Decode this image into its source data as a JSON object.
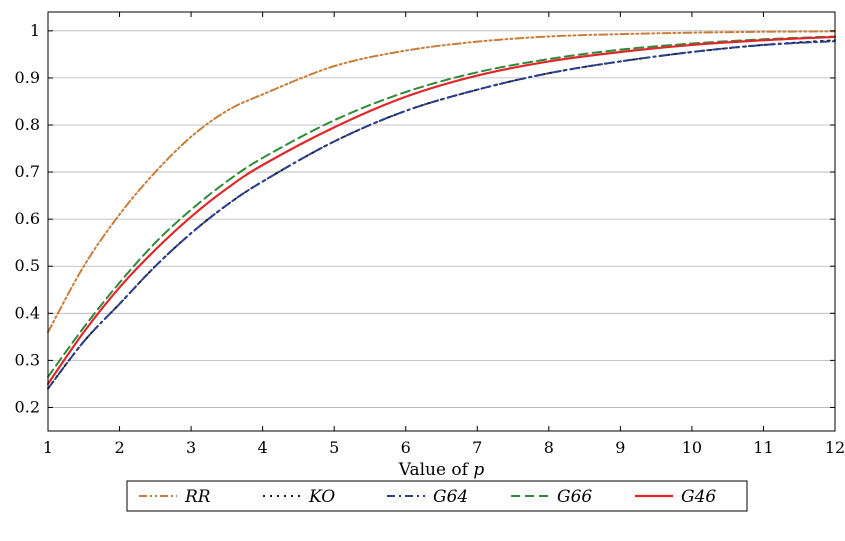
{
  "chart_data": {
    "type": "line",
    "xlabel": "Value of p",
    "xlabel_parts": {
      "prefix": "Value of ",
      "variable": "p"
    },
    "ylabel": "",
    "xlim": [
      1,
      12
    ],
    "ylim": [
      0.15,
      1.04
    ],
    "xticks": [
      1,
      2,
      3,
      4,
      5,
      6,
      7,
      8,
      9,
      10,
      11,
      12
    ],
    "yticks": [
      0.2,
      0.3,
      0.4,
      0.5,
      0.6,
      0.7,
      0.8,
      0.9,
      1
    ],
    "grid": "horizontal",
    "legend_position": "bottom",
    "x": [
      1,
      1.5,
      2,
      2.5,
      3,
      3.5,
      4,
      5,
      6,
      7,
      8,
      9,
      10,
      11,
      12
    ],
    "series": [
      {
        "name": "RR",
        "color": "#c87e3a",
        "dash": "dash-dot-dot",
        "values": [
          0.36,
          0.5,
          0.61,
          0.7,
          0.775,
          0.83,
          0.865,
          0.925,
          0.958,
          0.977,
          0.988,
          0.993,
          0.996,
          0.998,
          0.999
        ]
      },
      {
        "name": "KO",
        "color": "#1a1a1a",
        "dash": "dotted",
        "values": [
          0.24,
          0.34,
          0.42,
          0.5,
          0.57,
          0.63,
          0.68,
          0.765,
          0.83,
          0.875,
          0.91,
          0.935,
          0.955,
          0.97,
          0.98
        ]
      },
      {
        "name": "G64",
        "color": "#2a3f8f",
        "dash": "dash-dot",
        "values": [
          0.24,
          0.34,
          0.42,
          0.5,
          0.57,
          0.63,
          0.68,
          0.765,
          0.83,
          0.875,
          0.91,
          0.935,
          0.955,
          0.97,
          0.978
        ]
      },
      {
        "name": "G66",
        "color": "#2e8b3a",
        "dash": "dashed",
        "values": [
          0.265,
          0.37,
          0.465,
          0.55,
          0.62,
          0.68,
          0.73,
          0.81,
          0.87,
          0.912,
          0.94,
          0.96,
          0.973,
          0.982,
          0.988
        ]
      },
      {
        "name": "G46",
        "color": "#e0282a",
        "dash": "solid",
        "values": [
          0.25,
          0.36,
          0.455,
          0.535,
          0.605,
          0.665,
          0.715,
          0.795,
          0.86,
          0.905,
          0.935,
          0.955,
          0.97,
          0.98,
          0.987
        ]
      }
    ]
  }
}
